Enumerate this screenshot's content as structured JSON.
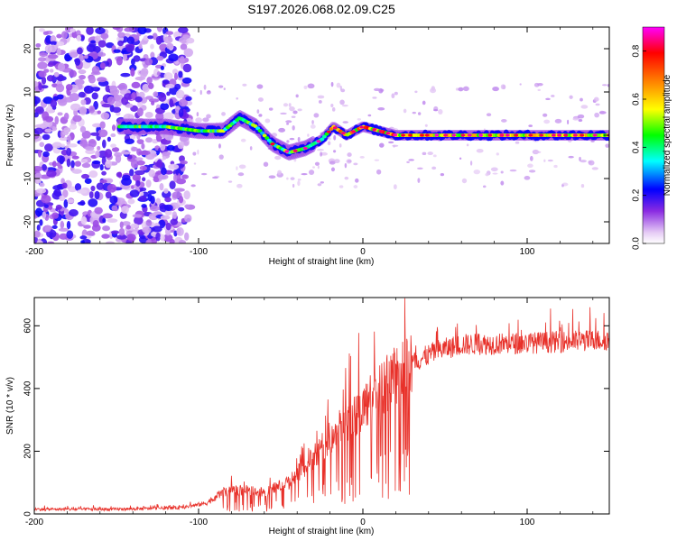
{
  "title": "S197.2026.068.02.09.C25",
  "chart_data": [
    {
      "type": "heatmap",
      "name": "spectrogram",
      "xlabel": "Height of straight line (km)",
      "ylabel": "Frequency (Hz)",
      "xlim": [
        -200,
        150
      ],
      "ylim": [
        -25,
        25
      ],
      "xticks": [
        "-200",
        "-100",
        "0",
        "100"
      ],
      "xtick_values": [
        -200,
        -100,
        0,
        100
      ],
      "yticks": [
        "-20",
        "-10",
        "0",
        "10",
        "20"
      ],
      "ytick_values": [
        -20,
        -10,
        0,
        10,
        20
      ],
      "colorbar": {
        "label": "Normalized spectral amplitude",
        "range": [
          0,
          0.9
        ],
        "ticks": [
          "0.0",
          "0.2",
          "0.4",
          "0.6",
          "0.8"
        ],
        "tick_values": [
          0,
          0.2,
          0.4,
          0.6,
          0.8
        ]
      },
      "ridge": {
        "description_points_x": [
          -145,
          -120,
          -100,
          -85,
          -75,
          -65,
          -55,
          -45,
          -35,
          -25,
          -18,
          -10,
          0,
          10,
          20,
          40,
          80,
          120,
          150
        ],
        "description_points_y": [
          2,
          2,
          1,
          1,
          4,
          2,
          -2,
          -4,
          -3,
          -1,
          2,
          0,
          2,
          1,
          0,
          0,
          0,
          0,
          0
        ]
      }
    },
    {
      "type": "line",
      "name": "snr",
      "xlabel": "Height of straight line (km)",
      "ylabel": "SNR (10 * v/v)",
      "xlim": [
        -200,
        150
      ],
      "ylim": [
        0,
        690
      ],
      "xticks": [
        "-200",
        "-100",
        "0",
        "100"
      ],
      "xtick_values": [
        -200,
        -100,
        0,
        100
      ],
      "yticks": [
        "0",
        "200",
        "400",
        "600"
      ],
      "ytick_values": [
        0,
        200,
        400,
        600
      ],
      "color": "#e8312a",
      "trend_x": [
        -200,
        -150,
        -110,
        -95,
        -85,
        -75,
        -60,
        -45,
        -30,
        -15,
        0,
        15,
        30,
        45,
        60,
        100,
        150
      ],
      "trend_y": [
        15,
        15,
        20,
        35,
        70,
        75,
        70,
        100,
        180,
        270,
        340,
        420,
        480,
        520,
        540,
        545,
        555
      ]
    }
  ]
}
